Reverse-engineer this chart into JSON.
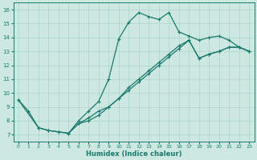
{
  "xlabel": "Humidex (Indice chaleur)",
  "bg_color": "#cce8e0",
  "line_color": "#1a7a6e",
  "grid_color": "#b0d8d0",
  "xlim": [
    -0.5,
    23.5
  ],
  "ylim": [
    6.5,
    16.5
  ],
  "xticks": [
    0,
    1,
    2,
    3,
    4,
    5,
    6,
    7,
    8,
    9,
    10,
    11,
    12,
    13,
    14,
    15,
    16,
    17,
    18,
    19,
    20,
    21,
    22,
    23
  ],
  "yticks": [
    7,
    8,
    9,
    10,
    11,
    12,
    13,
    14,
    15,
    16
  ],
  "curve1_x": [
    0,
    1,
    2,
    3,
    4,
    5,
    6,
    7,
    8,
    9,
    10,
    11,
    12,
    13,
    14,
    15,
    16,
    17,
    18,
    19,
    20,
    21,
    22,
    23
  ],
  "curve1_y": [
    9.5,
    8.7,
    7.5,
    7.3,
    7.2,
    7.1,
    8.0,
    8.7,
    9.4,
    11.0,
    13.9,
    15.1,
    15.8,
    15.5,
    15.3,
    15.8,
    14.4,
    14.1,
    13.8,
    14.0,
    14.1,
    13.8,
    13.3,
    13.0
  ],
  "curve2_x": [
    0,
    2,
    3,
    4,
    5,
    6,
    7,
    8,
    9,
    10,
    11,
    12,
    13,
    14,
    15,
    16,
    17,
    18,
    19,
    20,
    21,
    22,
    23
  ],
  "curve2_y": [
    9.5,
    7.5,
    7.3,
    7.2,
    7.1,
    7.8,
    8.2,
    8.7,
    9.0,
    9.6,
    10.2,
    10.8,
    11.4,
    12.0,
    12.6,
    13.2,
    13.8,
    12.5,
    12.8,
    13.0,
    13.3,
    13.3,
    13.0
  ],
  "curve3_x": [
    5,
    6,
    7,
    8,
    9,
    10,
    11,
    12,
    13,
    14,
    15,
    16,
    17,
    18,
    19,
    20,
    21,
    22,
    23
  ],
  "curve3_y": [
    7.1,
    7.8,
    8.0,
    8.4,
    9.0,
    9.6,
    10.4,
    11.0,
    11.6,
    12.2,
    12.8,
    13.4,
    13.8,
    12.5,
    12.8,
    13.0,
    13.3,
    13.3,
    13.0
  ]
}
